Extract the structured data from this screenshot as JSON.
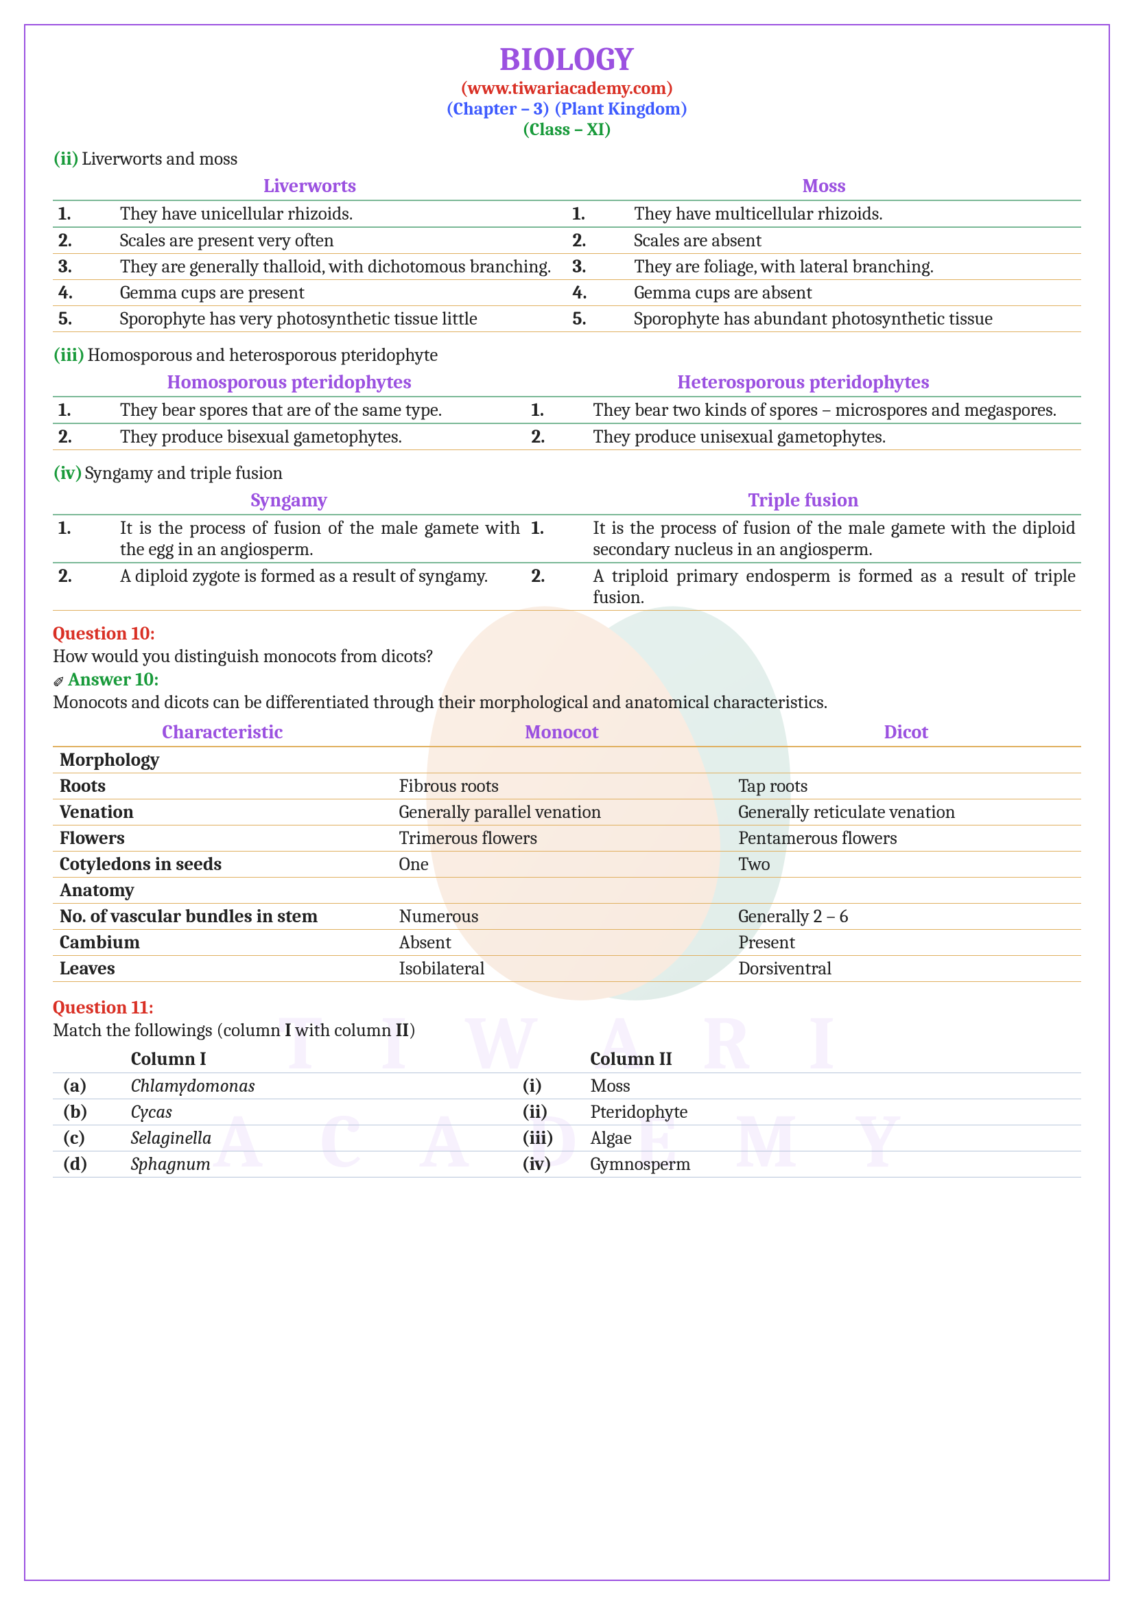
{
  "header": {
    "title": "BIOLOGY",
    "website": "(www.tiwariacademy.com)",
    "chapter": "(Chapter – 3) (Plant Kingdom)",
    "class": "(Class – XI)"
  },
  "colors": {
    "purple": "#9b51e0",
    "red": "#d93025",
    "blue": "#3d5afe",
    "green": "#189a3a",
    "rowBorder": "#e0b060"
  },
  "section_ii": {
    "label": "(ii)",
    "title": "Liverworts and moss",
    "left_head": "Liverworts",
    "right_head": "Moss",
    "rows": [
      {
        "n": "1.",
        "l": "They have unicellular rhizoids.",
        "r": "They   have   multicellular rhizoids."
      },
      {
        "n": "2.",
        "l": "Scales are present very often",
        "r": "Scales are absent"
      },
      {
        "n": "3.",
        "l": "They are generally thalloid, with dichotomous branching.",
        "r": "They are foliage, with lateral branching."
      },
      {
        "n": "4.",
        "l": "Gemma cups are present",
        "r": "Gemma cups are absent"
      },
      {
        "n": "5.",
        "l": "Sporophyte     has very photosynthetic tissue little",
        "r": "Sporophyte has abundant photosynthetic tissue"
      }
    ]
  },
  "section_iii": {
    "label": "(iii)",
    "title": "Homosporous and heterosporous pteridophyte",
    "left_head": "Homosporous pteridophytes",
    "right_head": "Heterosporous pteridophytes",
    "rows": [
      {
        "n": "1.",
        "l": "They bear spores that are of the same type.",
        "r": "They bear two kinds of spores – microspores and megaspores."
      },
      {
        "n": "2.",
        "l": "They   produce bisexual gametophytes.",
        "r": "They   produce        unisexual gametophytes."
      }
    ]
  },
  "section_iv": {
    "label": "(iv)",
    "title": "Syngamy and triple fusion",
    "left_head": "Syngamy",
    "right_head": "Triple fusion",
    "rows": [
      {
        "n": "1.",
        "l": "It is the process of fusion of the male gamete with the egg in an angiosperm.",
        "r": "It is the process of fusion of the male gamete with the diploid secondary nucleus in an angiosperm."
      },
      {
        "n": "2.",
        "l": "A diploid zygote is formed as a result of syngamy.",
        "r": "A triploid primary endosperm is formed as a result of triple fusion."
      }
    ]
  },
  "q10": {
    "label": "Question 10:",
    "text": "How would you distinguish monocots from dicots?",
    "answer_label": "Answer 10:",
    "answer_intro": "Monocots and dicots can be differentiated through their morphological and anatomical characteristics.",
    "head": {
      "c": "Characteristic",
      "m": "Monocot",
      "d": "Dicot"
    },
    "rows": [
      {
        "c": "Morphology",
        "m": "",
        "d": ""
      },
      {
        "c": "Roots",
        "m": "Fibrous roots",
        "d": "Tap roots"
      },
      {
        "c": "Venation",
        "m": "Generally parallel venation",
        "d": "Generally reticulate venation"
      },
      {
        "c": "Flowers",
        "m": "Trimerous flowers",
        "d": "Pentamerous flowers"
      },
      {
        "c": "Cotyledons in seeds",
        "m": "One",
        "d": "Two"
      },
      {
        "c": "Anatomy",
        "m": "",
        "d": ""
      },
      {
        "c": "No. of vascular bundles in stem",
        "m": "Numerous",
        "d": "Generally 2 – 6"
      },
      {
        "c": "Cambium",
        "m": "Absent",
        "d": "Present"
      },
      {
        "c": "Leaves",
        "m": "Isobilateral",
        "d": "Dorsiventral"
      }
    ]
  },
  "q11": {
    "label": "Question 11:",
    "text": "Match the followings (column I with column II)",
    "head": {
      "c1": "Column I",
      "c2": "Column II"
    },
    "rows": [
      {
        "k": "(a)",
        "c1": "Chlamydomonas",
        "k2": "(i)",
        "c2": "Moss"
      },
      {
        "k": "(b)",
        "c1": "Cycas",
        "k2": "(ii)",
        "c2": "Pteridophyte"
      },
      {
        "k": "(c)",
        "c1": "Selaginella",
        "k2": "(iii)",
        "c2": "Algae"
      },
      {
        "k": "(d)",
        "c1": "Sphagnum",
        "k2": "(iv)",
        "c2": "Gymnosperm"
      }
    ]
  }
}
